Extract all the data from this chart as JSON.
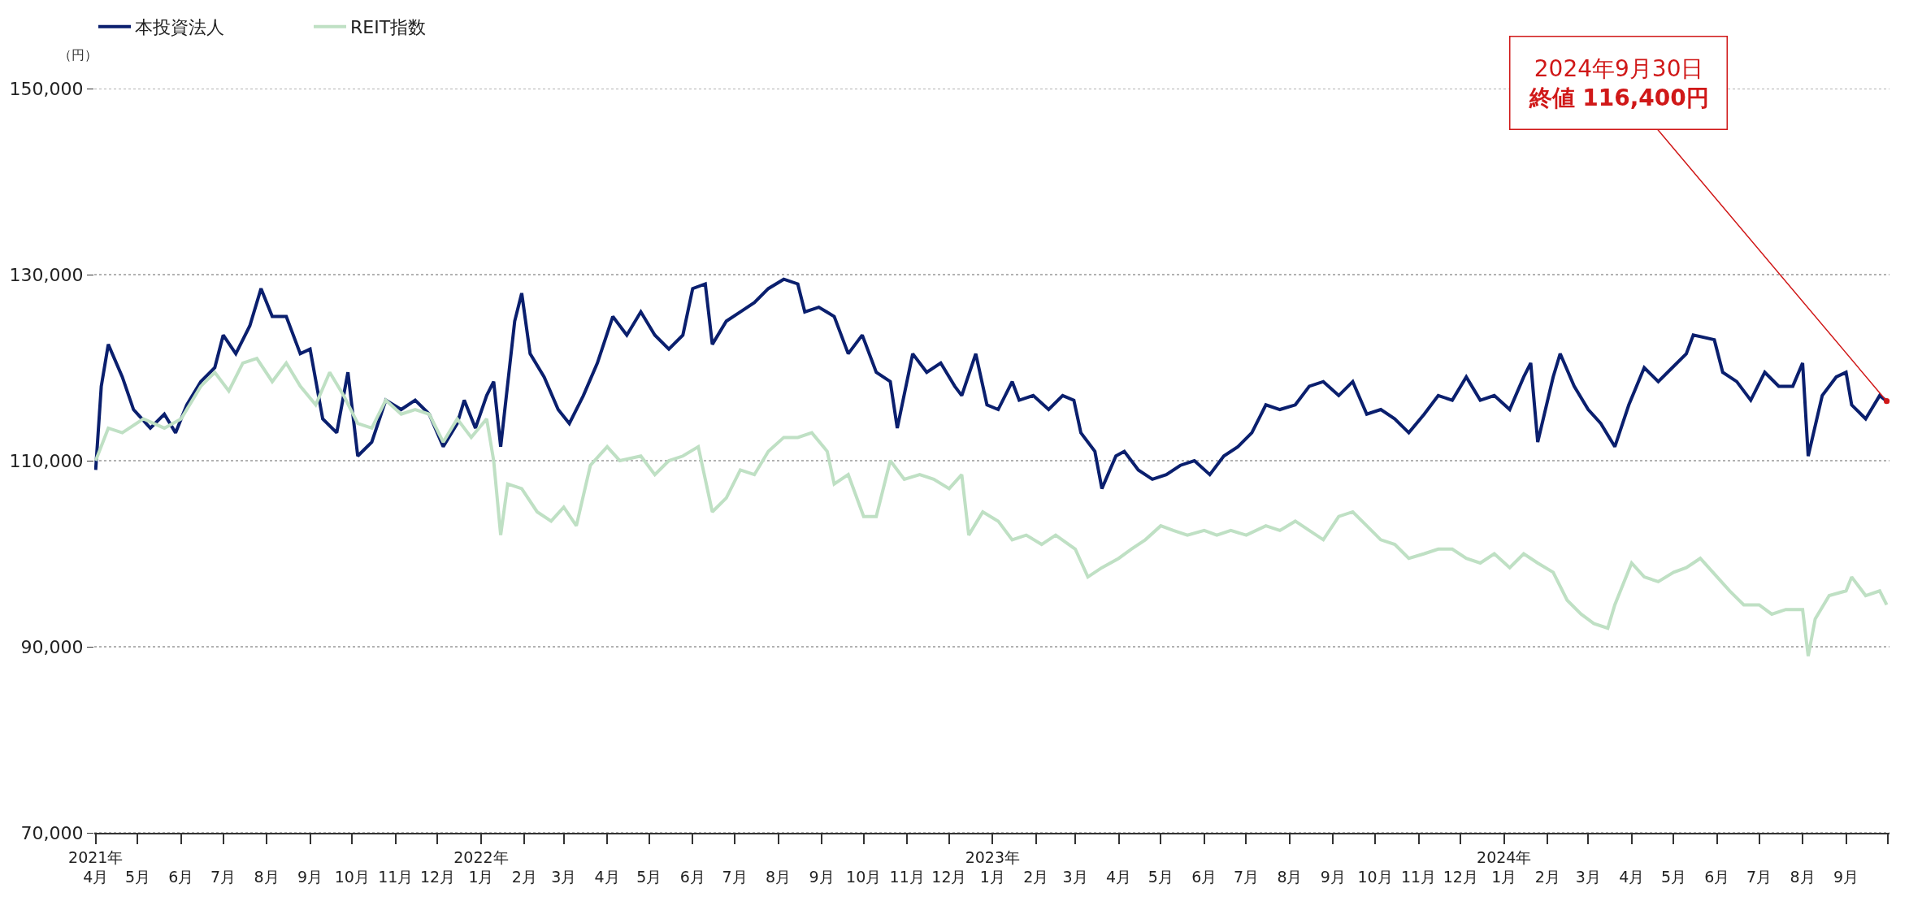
{
  "chart_data": {
    "type": "line",
    "ylabel": "（円）",
    "xlim": [
      "2021-03-31",
      "2024-10-02"
    ],
    "ylim": [
      70000,
      150000
    ],
    "yticks": [
      {
        "value": 70000,
        "label": "70,000"
      },
      {
        "value": 90000,
        "label": "90,000"
      },
      {
        "value": 110000,
        "label": "110,000"
      },
      {
        "value": 130000,
        "label": "130,000"
      },
      {
        "value": 150000,
        "label": "150,000"
      }
    ],
    "xticks": [
      {
        "value": "2021-04-01",
        "label": "2021年\n4月"
      },
      {
        "value": "2021-05-01",
        "label": "5月"
      },
      {
        "value": "2021-06-01",
        "label": "6月"
      },
      {
        "value": "2021-07-01",
        "label": "7月"
      },
      {
        "value": "2021-08-01",
        "label": "8月"
      },
      {
        "value": "2021-09-01",
        "label": "9月"
      },
      {
        "value": "2021-10-01",
        "label": "10月"
      },
      {
        "value": "2021-11-01",
        "label": "11月"
      },
      {
        "value": "2021-12-01",
        "label": "12月"
      },
      {
        "value": "2022-01-01",
        "label": "2022年\n1月"
      },
      {
        "value": "2022-02-01",
        "label": "2月"
      },
      {
        "value": "2022-03-01",
        "label": "3月"
      },
      {
        "value": "2022-04-01",
        "label": "4月"
      },
      {
        "value": "2022-05-01",
        "label": "5月"
      },
      {
        "value": "2022-06-01",
        "label": "6月"
      },
      {
        "value": "2022-07-01",
        "label": "7月"
      },
      {
        "value": "2022-08-01",
        "label": "8月"
      },
      {
        "value": "2022-09-01",
        "label": "9月"
      },
      {
        "value": "2022-10-01",
        "label": "10月"
      },
      {
        "value": "2022-11-01",
        "label": "11月"
      },
      {
        "value": "2022-12-01",
        "label": "12月"
      },
      {
        "value": "2023-01-01",
        "label": "2023年\n1月"
      },
      {
        "value": "2023-02-01",
        "label": "2月"
      },
      {
        "value": "2023-03-01",
        "label": "3月"
      },
      {
        "value": "2023-04-01",
        "label": "4月"
      },
      {
        "value": "2023-05-01",
        "label": "5月"
      },
      {
        "value": "2023-06-01",
        "label": "6月"
      },
      {
        "value": "2023-07-01",
        "label": "7月"
      },
      {
        "value": "2023-08-01",
        "label": "8月"
      },
      {
        "value": "2023-09-01",
        "label": "9月"
      },
      {
        "value": "2023-10-01",
        "label": "10月"
      },
      {
        "value": "2023-11-01",
        "label": "11月"
      },
      {
        "value": "2023-12-01",
        "label": "12月"
      },
      {
        "value": "2024-01-01",
        "label": "2024年\n1月"
      },
      {
        "value": "2024-02-01",
        "label": "2月"
      },
      {
        "value": "2024-03-01",
        "label": "3月"
      },
      {
        "value": "2024-04-01",
        "label": "4月"
      },
      {
        "value": "2024-05-01",
        "label": "5月"
      },
      {
        "value": "2024-06-01",
        "label": "6月"
      },
      {
        "value": "2024-07-01",
        "label": "7月"
      },
      {
        "value": "2024-08-01",
        "label": "8月"
      },
      {
        "value": "2024-09-01",
        "label": "9月"
      },
      {
        "value": "2024-10-01",
        "label": null
      }
    ],
    "grid": "y",
    "legend": "top left",
    "marker": "none",
    "line_style": "solid",
    "annotations": [
      "2024年9月30日",
      {
        "text": "終値 116,400円",
        "x": "2024-09-30",
        "y": 116400
      }
    ],
    "series": [
      {
        "name": "本投資法人",
        "color": "#0a1f6e",
        "x": [
          "2021-04-01",
          "2021-04-05",
          "2021-04-10",
          "2021-04-20",
          "2021-04-28",
          "2021-05-10",
          "2021-05-20",
          "2021-05-28",
          "2021-06-05",
          "2021-06-15",
          "2021-06-25",
          "2021-07-01",
          "2021-07-10",
          "2021-07-20",
          "2021-07-28",
          "2021-08-05",
          "2021-08-15",
          "2021-08-25",
          "2021-09-01",
          "2021-09-10",
          "2021-09-20",
          "2021-09-28",
          "2021-10-05",
          "2021-10-15",
          "2021-10-25",
          "2021-11-05",
          "2021-11-15",
          "2021-11-25",
          "2021-12-05",
          "2021-12-15",
          "2021-12-20",
          "2021-12-28",
          "2022-01-05",
          "2022-01-10",
          "2022-01-15",
          "2022-01-25",
          "2022-01-30",
          "2022-02-05",
          "2022-02-15",
          "2022-02-25",
          "2022-03-05",
          "2022-03-15",
          "2022-03-25",
          "2022-04-05",
          "2022-04-15",
          "2022-04-25",
          "2022-05-05",
          "2022-05-15",
          "2022-05-25",
          "2022-06-01",
          "2022-06-10",
          "2022-06-15",
          "2022-06-25",
          "2022-07-05",
          "2022-07-15",
          "2022-07-25",
          "2022-08-05",
          "2022-08-15",
          "2022-08-20",
          "2022-08-30",
          "2022-09-10",
          "2022-09-20",
          "2022-09-30",
          "2022-10-10",
          "2022-10-20",
          "2022-10-25",
          "2022-11-05",
          "2022-11-15",
          "2022-11-25",
          "2022-12-05",
          "2022-12-10",
          "2022-12-20",
          "2022-12-28",
          "2023-01-05",
          "2023-01-15",
          "2023-01-20",
          "2023-01-30",
          "2023-02-10",
          "2023-02-20",
          "2023-02-28",
          "2023-03-05",
          "2023-03-15",
          "2023-03-20",
          "2023-03-30",
          "2023-04-05",
          "2023-04-15",
          "2023-04-25",
          "2023-05-05",
          "2023-05-15",
          "2023-05-25",
          "2023-06-05",
          "2023-06-15",
          "2023-06-25",
          "2023-07-05",
          "2023-07-15",
          "2023-07-25",
          "2023-08-05",
          "2023-08-15",
          "2023-08-25",
          "2023-09-05",
          "2023-09-15",
          "2023-09-25",
          "2023-10-05",
          "2023-10-15",
          "2023-10-25",
          "2023-11-05",
          "2023-11-15",
          "2023-11-25",
          "2023-12-05",
          "2023-12-15",
          "2023-12-25",
          "2024-01-05",
          "2024-01-15",
          "2024-01-20",
          "2024-01-25",
          "2024-02-05",
          "2024-02-10",
          "2024-02-20",
          "2024-03-01",
          "2024-03-10",
          "2024-03-20",
          "2024-03-30",
          "2024-04-10",
          "2024-04-20",
          "2024-04-30",
          "2024-05-10",
          "2024-05-15",
          "2024-05-30",
          "2024-06-05",
          "2024-06-15",
          "2024-06-25",
          "2024-07-05",
          "2024-07-15",
          "2024-07-25",
          "2024-08-01",
          "2024-08-05",
          "2024-08-15",
          "2024-08-25",
          "2024-09-01",
          "2024-09-05",
          "2024-09-15",
          "2024-09-25",
          "2024-09-30"
        ],
        "values": [
          109000,
          118000,
          122500,
          119000,
          115500,
          113500,
          115000,
          113000,
          116000,
          118500,
          120000,
          123500,
          121500,
          124500,
          128500,
          125500,
          125500,
          121500,
          122000,
          114500,
          113000,
          119500,
          110500,
          112000,
          116500,
          115500,
          116500,
          115000,
          111500,
          114000,
          116500,
          113500,
          117000,
          118500,
          111500,
          125000,
          128000,
          121500,
          119000,
          115500,
          114000,
          117000,
          120500,
          125500,
          123500,
          126000,
          123500,
          122000,
          123500,
          128500,
          129000,
          122500,
          125000,
          126000,
          127000,
          128500,
          129500,
          129000,
          126000,
          126500,
          125500,
          121500,
          123500,
          119500,
          118500,
          113500,
          121500,
          119500,
          120500,
          118000,
          117000,
          121500,
          116000,
          115500,
          118500,
          116500,
          117000,
          115500,
          117000,
          116500,
          113000,
          111000,
          107000,
          110500,
          111000,
          109000,
          108000,
          108500,
          109500,
          110000,
          108500,
          110500,
          111500,
          113000,
          116000,
          115500,
          116000,
          118000,
          118500,
          117000,
          118500,
          115000,
          115500,
          114500,
          113000,
          115000,
          117000,
          116500,
          119000,
          116500,
          117000,
          115500,
          119000,
          120500,
          112000,
          119000,
          121500,
          118000,
          115500,
          114000,
          111500,
          116000,
          120000,
          118500,
          120000,
          121500,
          123500,
          123000,
          119500,
          118500,
          116500,
          119500,
          118000,
          118000,
          120500,
          110500,
          117000,
          119000,
          119500,
          116000,
          114500,
          117000,
          116400
        ]
      },
      {
        "name": "REIT指数",
        "color": "#bfe0c4",
        "x": [
          "2021-04-01",
          "2021-04-10",
          "2021-04-20",
          "2021-05-05",
          "2021-05-20",
          "2021-06-01",
          "2021-06-15",
          "2021-06-25",
          "2021-07-05",
          "2021-07-15",
          "2021-07-25",
          "2021-08-05",
          "2021-08-15",
          "2021-08-25",
          "2021-09-05",
          "2021-09-15",
          "2021-09-25",
          "2021-10-05",
          "2021-10-15",
          "2021-10-25",
          "2021-11-05",
          "2021-11-15",
          "2021-11-25",
          "2021-12-05",
          "2021-12-15",
          "2021-12-25",
          "2022-01-05",
          "2022-01-10",
          "2022-01-15",
          "2022-01-20",
          "2022-01-30",
          "2022-02-10",
          "2022-02-20",
          "2022-03-01",
          "2022-03-10",
          "2022-03-20",
          "2022-04-01",
          "2022-04-10",
          "2022-04-25",
          "2022-05-05",
          "2022-05-15",
          "2022-05-25",
          "2022-06-05",
          "2022-06-15",
          "2022-06-25",
          "2022-07-05",
          "2022-07-15",
          "2022-07-25",
          "2022-08-05",
          "2022-08-15",
          "2022-08-25",
          "2022-09-05",
          "2022-09-10",
          "2022-09-20",
          "2022-10-01",
          "2022-10-10",
          "2022-10-20",
          "2022-10-30",
          "2022-11-10",
          "2022-11-20",
          "2022-12-01",
          "2022-12-10",
          "2022-12-15",
          "2022-12-25",
          "2023-01-05",
          "2023-01-15",
          "2023-01-25",
          "2023-02-05",
          "2023-02-15",
          "2023-03-01",
          "2023-03-10",
          "2023-03-20",
          "2023-04-01",
          "2023-04-10",
          "2023-04-20",
          "2023-05-01",
          "2023-05-10",
          "2023-05-20",
          "2023-06-01",
          "2023-06-10",
          "2023-06-20",
          "2023-07-01",
          "2023-07-15",
          "2023-07-25",
          "2023-08-05",
          "2023-08-15",
          "2023-08-25",
          "2023-09-05",
          "2023-09-15",
          "2023-09-25",
          "2023-10-05",
          "2023-10-15",
          "2023-10-25",
          "2023-11-05",
          "2023-11-15",
          "2023-11-25",
          "2023-12-05",
          "2023-12-15",
          "2023-12-25",
          "2024-01-05",
          "2024-01-15",
          "2024-01-25",
          "2024-02-05",
          "2024-02-15",
          "2024-02-25",
          "2024-03-05",
          "2024-03-15",
          "2024-03-20",
          "2024-04-01",
          "2024-04-10",
          "2024-04-20",
          "2024-05-01",
          "2024-05-10",
          "2024-05-20",
          "2024-06-01",
          "2024-06-10",
          "2024-06-20",
          "2024-07-01",
          "2024-07-10",
          "2024-07-20",
          "2024-08-01",
          "2024-08-05",
          "2024-08-10",
          "2024-08-20",
          "2024-09-01",
          "2024-09-05",
          "2024-09-15",
          "2024-09-25",
          "2024-09-30"
        ],
        "values": [
          110000,
          113500,
          113000,
          114500,
          113500,
          114500,
          118000,
          119500,
          117500,
          120500,
          121000,
          118500,
          120500,
          118000,
          116000,
          119500,
          117000,
          114000,
          113500,
          116500,
          115000,
          115500,
          115000,
          112000,
          114500,
          112500,
          114500,
          110000,
          102000,
          107500,
          107000,
          104500,
          103500,
          105000,
          103000,
          109500,
          111500,
          110000,
          110500,
          108500,
          110000,
          110500,
          111500,
          104500,
          106000,
          109000,
          108500,
          111000,
          112500,
          112500,
          113000,
          111000,
          107500,
          108500,
          104000,
          104000,
          110000,
          108000,
          108500,
          108000,
          107000,
          108500,
          102000,
          104500,
          103500,
          101500,
          102000,
          101000,
          102000,
          100500,
          97500,
          98500,
          99500,
          100500,
          101500,
          103000,
          102500,
          102000,
          102500,
          102000,
          102500,
          102000,
          103000,
          102500,
          103500,
          102500,
          101500,
          104000,
          104500,
          103000,
          101500,
          101000,
          99500,
          100000,
          100500,
          100500,
          99500,
          99000,
          100000,
          98500,
          100000,
          99000,
          98000,
          95000,
          93500,
          92500,
          92000,
          94500,
          99000,
          97500,
          97000,
          98000,
          98500,
          99500,
          97500,
          96000,
          94500,
          94500,
          93500,
          94000,
          94000,
          89000,
          93000,
          95500,
          96000,
          97500,
          95500,
          96000,
          94500
        ]
      }
    ]
  }
}
